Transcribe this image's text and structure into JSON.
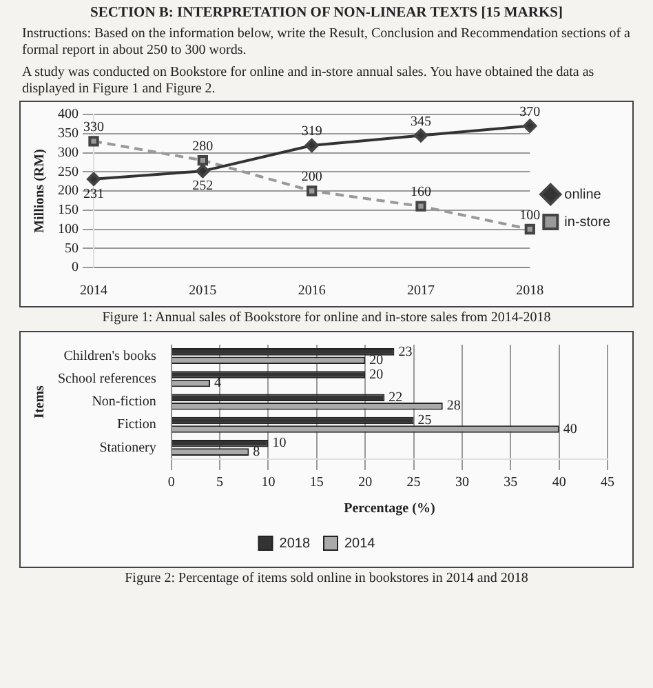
{
  "chart_data": [
    {
      "type": "line",
      "title": "SECTION B: INTERPRETATION OF NON-LINEAR TEXTS [15 MARKS]",
      "annotations": [
        "Instructions: Based on the information below, write the Result, Conclusion and Recommendation sections of a formal report in about 250 to 300 words.",
        "A study was conducted on Bookstore for online and in-store annual sales. You have obtained the data as displayed in Figure 1 and Figure 2.",
        "Figure 1: Annual sales of Bookstore for online and in-store sales from 2014-2018"
      ],
      "categories": [
        "2014",
        "2015",
        "2016",
        "2017",
        "2018"
      ],
      "series": [
        {
          "name": "online",
          "color": "#333333",
          "values": [
            231,
            252,
            319,
            345,
            370
          ],
          "marker": "diamond",
          "line_style": "solid"
        },
        {
          "name": "in-store",
          "color": "#999999",
          "values": [
            330,
            280,
            200,
            160,
            100
          ],
          "marker": "square",
          "line_style": "dashed"
        }
      ],
      "ylabel": "Millions (RM)",
      "ylim": [
        0,
        400
      ],
      "yticks": [
        0,
        50,
        100,
        150,
        200,
        250,
        300,
        350,
        400
      ],
      "grid": "y",
      "legend": "right",
      "data_labels": true
    },
    {
      "type": "bar",
      "orientation": "horizontal",
      "categories": [
        "Children's books",
        "School references",
        "Non-fiction",
        "Fiction",
        "Stationery"
      ],
      "series": [
        {
          "name": "2018",
          "color": "#333333",
          "values": [
            23,
            20,
            22,
            25,
            10
          ]
        },
        {
          "name": "2014",
          "color": "#aaaaaa",
          "values": [
            20,
            4,
            28,
            40,
            8
          ]
        }
      ],
      "xlabel": "Percentage (%)",
      "ylabel": "Items",
      "xlim": [
        0,
        45
      ],
      "xticks": [
        0,
        5,
        10,
        15,
        20,
        25,
        30,
        35,
        40,
        45
      ],
      "grid": "x",
      "legend": "bottom",
      "data_labels": true,
      "annotations": [
        "Figure 2: Percentage of items sold online in bookstores in 2014 and 2018"
      ]
    }
  ]
}
